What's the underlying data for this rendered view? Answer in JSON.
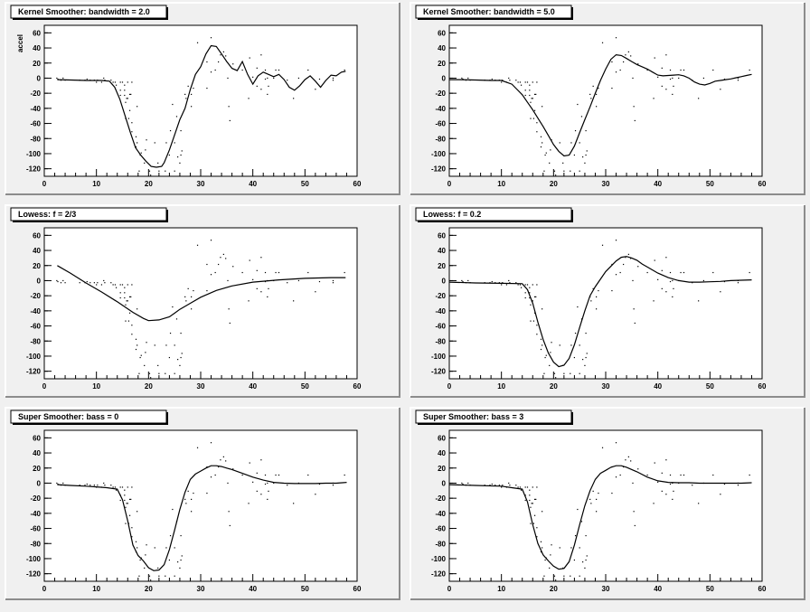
{
  "chart_data": [
    {
      "type": "line",
      "title": "Kernel Smoother: bandwidth = 2.0",
      "ylabel": "accel",
      "xlim": [
        0,
        60
      ],
      "ylim": [
        -130,
        70
      ],
      "xticks": [
        "0",
        "10",
        "20",
        "30",
        "40",
        "50",
        "60"
      ],
      "yticks": [
        "-120",
        "-100",
        "-80",
        "-60",
        "-40",
        "-20",
        "0",
        "20",
        "40",
        "60"
      ],
      "series": [
        {
          "x": [
            2.5,
            5,
            8,
            11,
            12.5,
            13.5,
            14.5,
            15.5,
            16.5,
            17.5,
            18.5,
            19.5,
            20.5,
            21.5,
            22.5,
            23,
            24,
            25,
            26,
            27,
            28,
            29,
            30,
            31,
            32,
            33,
            34,
            35,
            36,
            37,
            38,
            39,
            40,
            41,
            42,
            43,
            44,
            45,
            46,
            47,
            48,
            49,
            50,
            51,
            52,
            53,
            54,
            55,
            56,
            57,
            57.8
          ],
          "y": [
            -2,
            -2.5,
            -3,
            -3,
            -4,
            -12,
            -28,
            -50,
            -72,
            -92,
            -102,
            -110,
            -117,
            -118,
            -117,
            -112,
            -95,
            -75,
            -55,
            -40,
            -15,
            5,
            15,
            32,
            43,
            42,
            32,
            22,
            13,
            10,
            22,
            5,
            -8,
            3,
            8,
            5,
            2,
            5,
            -2,
            -12,
            -16,
            -10,
            -2,
            3,
            -4,
            -12,
            -3,
            4,
            3,
            8,
            9
          ]
        }
      ]
    },
    {
      "type": "line",
      "title": "Kernel Smoother: bandwidth = 5.0",
      "xlim": [
        0,
        60
      ],
      "ylim": [
        -130,
        70
      ],
      "xticks": [
        "0",
        "10",
        "20",
        "30",
        "40",
        "50",
        "60"
      ],
      "yticks": [
        "-120",
        "-100",
        "-80",
        "-60",
        "-40",
        "-20",
        "0",
        "20",
        "40",
        "60"
      ],
      "series": [
        {
          "x": [
            0,
            2,
            5,
            8,
            10,
            12,
            13,
            14,
            15,
            16,
            17,
            18,
            19,
            20,
            21,
            22,
            23,
            24,
            25,
            26,
            27,
            28,
            29,
            30,
            31,
            32,
            33,
            34,
            35,
            36,
            37,
            38,
            39,
            40,
            41,
            42,
            43,
            44,
            45,
            46,
            47,
            48,
            49,
            50,
            51,
            52,
            53,
            54,
            55,
            56,
            57,
            58
          ],
          "y": [
            -2,
            -2,
            -2.5,
            -3,
            -3,
            -8,
            -15,
            -22,
            -32,
            -42,
            -53,
            -64,
            -76,
            -88,
            -97,
            -103,
            -102,
            -90,
            -72,
            -55,
            -38,
            -20,
            -3,
            12,
            25,
            31,
            30,
            26,
            22,
            18,
            15,
            12,
            8,
            4,
            3,
            3.5,
            4,
            4.5,
            3,
            0,
            -5,
            -8,
            -9,
            -7,
            -4,
            -3,
            -2,
            -1,
            0.5,
            2,
            3.5,
            5
          ]
        }
      ]
    },
    {
      "type": "line",
      "title": "Lowess: f = 2/3",
      "xlim": [
        0,
        60
      ],
      "ylim": [
        -130,
        70
      ],
      "xticks": [
        "0",
        "10",
        "20",
        "30",
        "40",
        "50",
        "60"
      ],
      "yticks": [
        "-120",
        "-100",
        "-80",
        "-60",
        "-40",
        "-20",
        "0",
        "20",
        "40",
        "60"
      ],
      "series": [
        {
          "x": [
            2.5,
            5,
            8,
            11,
            14,
            17,
            19,
            20,
            22,
            24,
            25,
            26,
            28,
            30,
            33,
            36,
            40,
            45,
            50,
            55,
            57.8
          ],
          "y": [
            20,
            10,
            -3,
            -15,
            -28,
            -42,
            -50,
            -53,
            -52,
            -48,
            -43,
            -38,
            -30,
            -22,
            -13,
            -7,
            -2,
            1,
            3,
            4,
            4
          ]
        }
      ]
    },
    {
      "type": "line",
      "title": "Lowess: f = 0.2",
      "xlim": [
        0,
        60
      ],
      "ylim": [
        -130,
        70
      ],
      "xticks": [
        "0",
        "10",
        "20",
        "30",
        "40",
        "50",
        "60"
      ],
      "yticks": [
        "-120",
        "-100",
        "-80",
        "-60",
        "-40",
        "-20",
        "0",
        "20",
        "40",
        "60"
      ],
      "series": [
        {
          "x": [
            0,
            5,
            10,
            14,
            15,
            16,
            17,
            18,
            19,
            20,
            21,
            22,
            23,
            24,
            25,
            26,
            27,
            28,
            30,
            32,
            33,
            34,
            35,
            36,
            37,
            38,
            40,
            42,
            44,
            46,
            48,
            50,
            52,
            54,
            56,
            58
          ],
          "y": [
            -2,
            -3,
            -3.5,
            -4,
            -12,
            -30,
            -55,
            -78,
            -96,
            -108,
            -114,
            -112,
            -103,
            -85,
            -62,
            -40,
            -20,
            -8,
            12,
            26,
            31,
            32,
            30,
            27,
            22,
            18,
            10,
            4,
            0,
            -2,
            -2,
            -1.5,
            -1,
            0,
            0.5,
            1
          ]
        }
      ]
    },
    {
      "type": "line",
      "title": "Super Smoother: bass = 0",
      "xlim": [
        0,
        60
      ],
      "ylim": [
        -130,
        70
      ],
      "xticks": [
        "0",
        "10",
        "20",
        "30",
        "40",
        "50",
        "60"
      ],
      "yticks": [
        "-120",
        "-100",
        "-80",
        "-60",
        "-40",
        "-20",
        "0",
        "20",
        "40",
        "60"
      ],
      "series": [
        {
          "x": [
            2.5,
            5,
            8,
            10,
            12,
            14,
            15,
            16,
            17,
            18,
            19,
            20,
            21,
            22,
            23,
            24,
            25,
            26,
            27,
            28,
            29,
            30,
            31,
            32,
            33,
            34,
            35,
            36,
            38,
            40,
            42,
            44,
            46,
            48,
            50,
            52,
            54,
            56,
            58
          ],
          "y": [
            -2,
            -3,
            -4,
            -5,
            -6,
            -8,
            -22,
            -50,
            -82,
            -96,
            -103,
            -112,
            -116,
            -115,
            -108,
            -88,
            -62,
            -35,
            -12,
            5,
            12,
            16,
            20,
            23,
            23,
            22,
            20,
            18,
            13,
            8,
            4,
            1,
            0,
            -0.5,
            -0.5,
            -0.5,
            0,
            0,
            1
          ]
        }
      ]
    },
    {
      "type": "line",
      "title": "Super Smoother: bass = 3",
      "xlim": [
        0,
        60
      ],
      "ylim": [
        -130,
        70
      ],
      "xticks": [
        "0",
        "10",
        "20",
        "30",
        "40",
        "50",
        "60"
      ],
      "yticks": [
        "-120",
        "-100",
        "-80",
        "-60",
        "-40",
        "-20",
        "0",
        "20",
        "40",
        "60"
      ],
      "series": [
        {
          "x": [
            0,
            5,
            10,
            12,
            14,
            15,
            16,
            17,
            18,
            19,
            20,
            21,
            22,
            23,
            24,
            25,
            26,
            27,
            28,
            29,
            30,
            31,
            32,
            33,
            34,
            35,
            36,
            38,
            40,
            42,
            44,
            46,
            48,
            50,
            52,
            54,
            56,
            58
          ],
          "y": [
            -2,
            -3,
            -4,
            -6,
            -8,
            -25,
            -55,
            -80,
            -95,
            -103,
            -110,
            -114,
            -113,
            -104,
            -82,
            -55,
            -30,
            -10,
            5,
            13,
            17,
            21,
            23,
            23,
            21,
            18,
            15,
            8,
            3,
            1,
            0.5,
            0.5,
            0,
            0,
            0,
            0,
            0,
            0.5
          ]
        }
      ]
    }
  ],
  "observations": {
    "x": [
      2.4,
      2.6,
      3.2,
      3.6,
      4.0,
      6.8,
      7.8,
      8.2,
      8.8,
      9.6,
      10.0,
      10.2,
      11.0,
      11.4,
      11.6,
      12.8,
      13.2,
      13.6,
      13.8,
      14.6,
      14.6,
      14.6,
      15.0,
      15.4,
      15.4,
      15.4,
      15.6,
      15.6,
      15.8,
      16.0,
      16.0,
      16.2,
      16.4,
      16.4,
      16.6,
      16.8,
      16.8,
      16.8,
      17.6,
      17.6,
      17.8,
      17.8,
      18.2,
      18.4,
      18.6,
      19.2,
      19.4,
      19.6,
      20.2,
      20.4,
      21.2,
      21.4,
      21.8,
      22.0,
      23.2,
      23.4,
      24.0,
      24.2,
      24.2,
      24.6,
      25.0,
      25.0,
      25.4,
      25.6,
      26.0,
      26.2,
      26.2,
      26.4,
      27.0,
      27.2,
      27.6,
      28.2,
      28.2,
      28.6,
      29.4,
      31.2,
      31.2,
      32.0,
      32.0,
      32.8,
      33.4,
      33.8,
      34.4,
      34.8,
      35.2,
      35.4,
      35.6,
      36.2,
      38.0,
      39.2,
      39.4,
      40.0,
      40.8,
      40.8,
      41.6,
      41.6,
      42.4,
      42.4,
      42.8,
      42.8,
      43.0,
      44.0,
      44.4,
      45.0,
      46.6,
      47.8,
      48.8,
      50.6,
      52.0,
      52.8,
      55.4,
      55.4,
      57.6
    ],
    "y": [
      0.0,
      -1.3,
      -2.7,
      0.0,
      -2.7,
      -2.7,
      -2.7,
      -1.3,
      -2.7,
      -2.7,
      -5.4,
      -2.7,
      -5.4,
      0.0,
      -2.7,
      -2.7,
      -5.4,
      -5.4,
      -9.3,
      -5.4,
      -16.0,
      -22.8,
      -5.4,
      -16.0,
      -9.3,
      -22.8,
      -32.1,
      -53.5,
      -26.8,
      -5.4,
      -26.8,
      -53.5,
      -42.9,
      -21.5,
      -21.5,
      -5.4,
      -59.0,
      -71.0,
      -91.1,
      -77.7,
      -37.5,
      -85.6,
      -123.1,
      -101.9,
      -99.1,
      -112.5,
      -95.1,
      -81.8,
      -123.1,
      -128.5,
      -85.6,
      -134.0,
      -112.5,
      -123.1,
      -123.1,
      -85.6,
      -101.9,
      -134.0,
      -69.6,
      -34.8,
      -85.6,
      -123.1,
      -50.8,
      -104.4,
      -112.5,
      -69.6,
      -101.9,
      -96.4,
      -21.5,
      -26.8,
      -10.7,
      -37.5,
      -21.5,
      -13.3,
      46.9,
      21.5,
      -13.3,
      53.6,
      8.1,
      10.7,
      21.5,
      30.8,
      34.8,
      29.4,
      0.0,
      -37.5,
      -56.3,
      18.8,
      10.7,
      -26.8,
      26.8,
      1.3,
      13.3,
      -10.7,
      30.8,
      -14.7,
      10.7,
      -1.3,
      0.0,
      -21.5,
      -10.7,
      0.0,
      10.7,
      10.7,
      -2.7,
      -26.8,
      0.0,
      10.7,
      -14.7,
      -1.3,
      0.0,
      -2.7,
      10.7
    ]
  }
}
